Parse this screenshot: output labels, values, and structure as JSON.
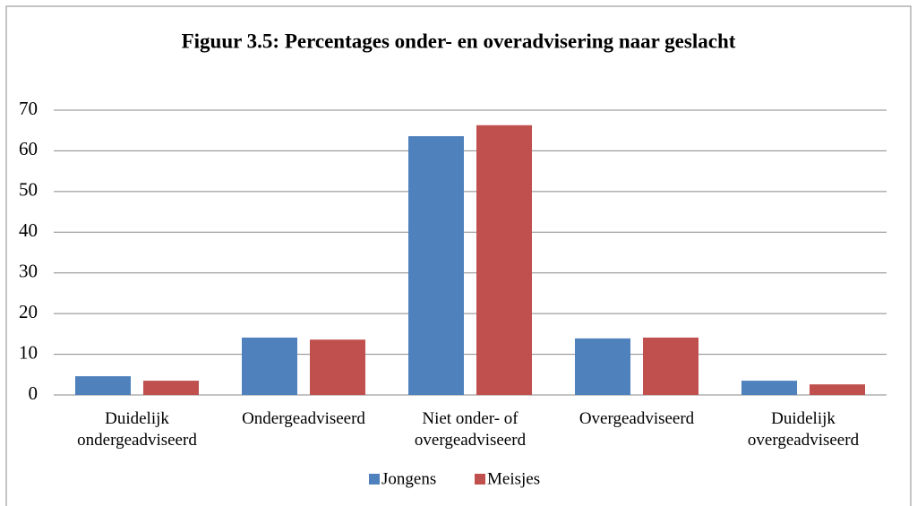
{
  "chart_data": {
    "type": "bar",
    "title": "Figuur 3.5: Percentages onder- en overadvisering naar geslacht",
    "categories": [
      "Duidelijk ondergeadviseerd",
      "Ondergeadviseerd",
      "Niet onder- of overgeadviseerd",
      "Overgeadviseerd",
      "Duidelijk overgeadviseerd"
    ],
    "series": [
      {
        "name": "Jongens",
        "color": "#4f81bd",
        "values": [
          4.6,
          14.1,
          63.6,
          13.9,
          3.5
        ]
      },
      {
        "name": "Meisjes",
        "color": "#c0504d",
        "values": [
          3.5,
          13.6,
          66.3,
          14.1,
          2.6
        ]
      }
    ],
    "ylim": [
      0,
      70
    ],
    "yticks": [
      0,
      10,
      20,
      30,
      40,
      50,
      60,
      70
    ],
    "grid": true,
    "legend": "bottom"
  }
}
